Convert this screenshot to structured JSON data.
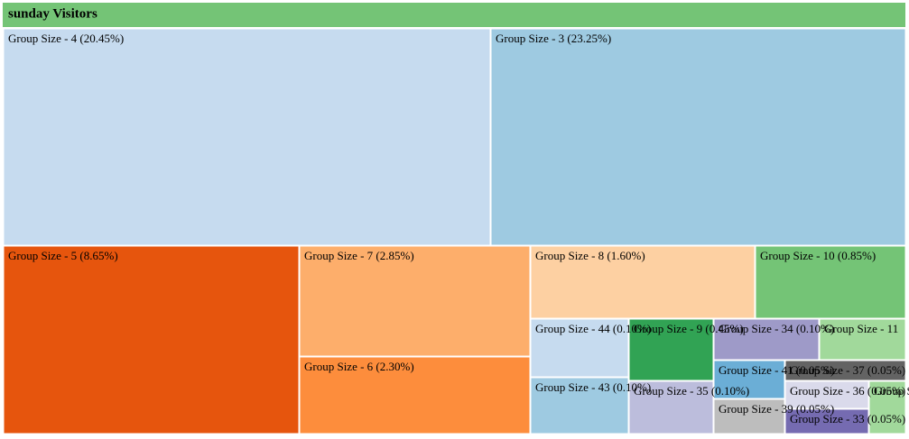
{
  "chart_data": {
    "type": "treemap",
    "title": "sunday Visitors",
    "title_color": "#74c476",
    "labels": [
      "Group Size - 4 (20.45%)",
      "Group Size - 3 (23.25%)",
      "Group Size - 5 (8.65%)",
      "Group Size - 7 (2.85%)",
      "Group Size - 6 (2.30%)",
      "Group Size - 8 (1.60%)",
      "Group Size - 10 (0.85%)",
      "Group Size - 44 (0.10%)",
      "Group Size - 9 (0.45%)",
      "Group Size - 34 (0.10%)",
      "Group Size - 11",
      "Group Size - 43 (0.10%)",
      "Group Size - 35 (0.10%)",
      "Group Size - 41 (0.05%)",
      "Group Size - 37 (0.05%)",
      "Group Size - 36 (0.05%)",
      "Group Size - 39 (0.05%)",
      "Group Size - 33 (0.05%)",
      "Group Size"
    ],
    "values": [
      20.45,
      23.25,
      8.65,
      2.85,
      2.3,
      1.6,
      0.85,
      0.1,
      0.45,
      0.1,
      0.1,
      0.1,
      0.1,
      0.05,
      0.05,
      0.05,
      0.05,
      0.05,
      0.05
    ],
    "colors": [
      "#c6dbef",
      "#9ecae1",
      "#e6550d",
      "#fdae6b",
      "#fd8d3c",
      "#fdd0a2",
      "#74c476",
      "#c6dbef",
      "#31a354",
      "#9e9ac8",
      "#a1d99b",
      "#9ecae1",
      "#bcbddc",
      "#6baed6",
      "#636363",
      "#dadaeb",
      "#bdbdbd",
      "#756bb1",
      "#a1d99b"
    ]
  }
}
